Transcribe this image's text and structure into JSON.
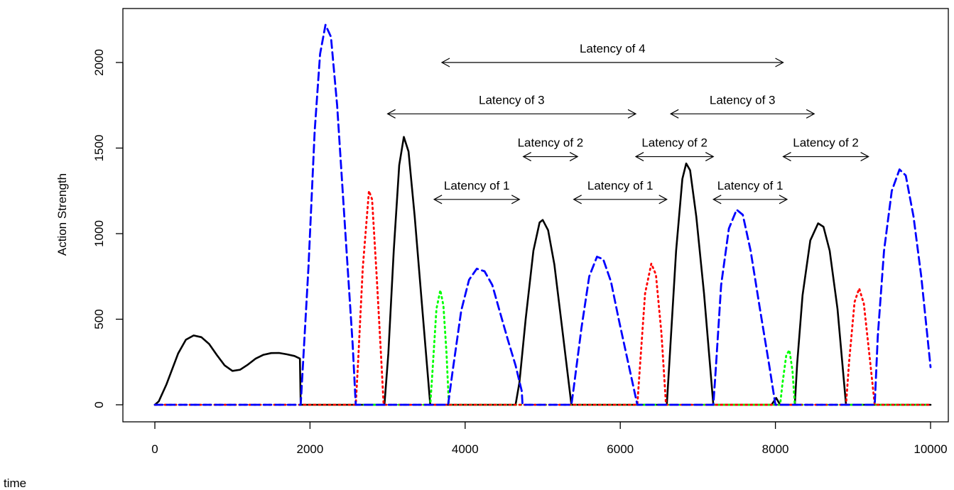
{
  "chart_data": {
    "type": "line",
    "title": "",
    "xlabel": "time",
    "ylabel": "Action Strength",
    "xlim": [
      0,
      10000
    ],
    "ylim": [
      0,
      2250
    ],
    "x_ticks": [
      "0",
      "2000",
      "4000",
      "6000",
      "8000",
      "10000"
    ],
    "y_ticks": [
      "0",
      "500",
      "1000",
      "1500",
      "2000"
    ],
    "grid": false,
    "legend": "none",
    "series": [
      {
        "color": "#000000",
        "style": "solid",
        "points": [
          [
            0,
            0
          ],
          [
            50,
            20
          ],
          [
            150,
            120
          ],
          [
            300,
            300
          ],
          [
            400,
            380
          ],
          [
            500,
            405
          ],
          [
            600,
            395
          ],
          [
            700,
            355
          ],
          [
            800,
            290
          ],
          [
            900,
            230
          ],
          [
            1000,
            198
          ],
          [
            1100,
            205
          ],
          [
            1200,
            235
          ],
          [
            1300,
            270
          ],
          [
            1400,
            292
          ],
          [
            1500,
            302
          ],
          [
            1600,
            303
          ],
          [
            1700,
            295
          ],
          [
            1800,
            285
          ],
          [
            1870,
            270
          ],
          [
            1880,
            0
          ],
          [
            2960,
            0
          ],
          [
            3010,
            300
          ],
          [
            3080,
            900
          ],
          [
            3150,
            1400
          ],
          [
            3210,
            1565
          ],
          [
            3270,
            1480
          ],
          [
            3350,
            1100
          ],
          [
            3450,
            550
          ],
          [
            3550,
            0
          ],
          [
            4650,
            0
          ],
          [
            4700,
            130
          ],
          [
            4780,
            500
          ],
          [
            4880,
            900
          ],
          [
            4960,
            1065
          ],
          [
            5000,
            1080
          ],
          [
            5070,
            1020
          ],
          [
            5150,
            820
          ],
          [
            5250,
            450
          ],
          [
            5370,
            0
          ],
          [
            6600,
            0
          ],
          [
            6640,
            300
          ],
          [
            6720,
            900
          ],
          [
            6800,
            1320
          ],
          [
            6850,
            1410
          ],
          [
            6900,
            1370
          ],
          [
            6980,
            1100
          ],
          [
            7080,
            650
          ],
          [
            7200,
            0
          ],
          [
            7950,
            0
          ],
          [
            8010,
            40
          ],
          [
            8060,
            0
          ],
          [
            8250,
            0
          ],
          [
            8280,
            240
          ],
          [
            8350,
            640
          ],
          [
            8450,
            960
          ],
          [
            8550,
            1060
          ],
          [
            8620,
            1040
          ],
          [
            8700,
            900
          ],
          [
            8800,
            560
          ],
          [
            8910,
            0
          ],
          [
            10000,
            0
          ]
        ]
      },
      {
        "color": "#0000ff",
        "style": "dashed",
        "points": [
          [
            0,
            0
          ],
          [
            1880,
            0
          ],
          [
            1890,
            80
          ],
          [
            1980,
            800
          ],
          [
            2060,
            1600
          ],
          [
            2130,
            2050
          ],
          [
            2200,
            2220
          ],
          [
            2270,
            2150
          ],
          [
            2350,
            1750
          ],
          [
            2450,
            1050
          ],
          [
            2550,
            350
          ],
          [
            2590,
            0
          ],
          [
            3780,
            0
          ],
          [
            3840,
            200
          ],
          [
            3950,
            550
          ],
          [
            4050,
            730
          ],
          [
            4150,
            795
          ],
          [
            4250,
            780
          ],
          [
            4350,
            700
          ],
          [
            4450,
            540
          ],
          [
            4550,
            380
          ],
          [
            4650,
            230
          ],
          [
            4730,
            80
          ],
          [
            4740,
            0
          ],
          [
            5370,
            0
          ],
          [
            5400,
            100
          ],
          [
            5500,
            450
          ],
          [
            5600,
            750
          ],
          [
            5700,
            865
          ],
          [
            5780,
            850
          ],
          [
            5880,
            720
          ],
          [
            5980,
            500
          ],
          [
            6100,
            250
          ],
          [
            6220,
            0
          ],
          [
            7200,
            0
          ],
          [
            7230,
            200
          ],
          [
            7300,
            700
          ],
          [
            7400,
            1030
          ],
          [
            7500,
            1140
          ],
          [
            7580,
            1110
          ],
          [
            7680,
            900
          ],
          [
            7800,
            560
          ],
          [
            7920,
            230
          ],
          [
            8000,
            0
          ],
          [
            9280,
            0
          ],
          [
            9320,
            400
          ],
          [
            9400,
            900
          ],
          [
            9500,
            1250
          ],
          [
            9600,
            1375
          ],
          [
            9680,
            1340
          ],
          [
            9780,
            1100
          ],
          [
            9880,
            750
          ],
          [
            10000,
            220
          ]
        ]
      },
      {
        "color": "#ff0000",
        "style": "dotted",
        "points": [
          [
            0,
            0
          ],
          [
            2590,
            0
          ],
          [
            2620,
            250
          ],
          [
            2680,
            800
          ],
          [
            2760,
            1250
          ],
          [
            2800,
            1200
          ],
          [
            2860,
            750
          ],
          [
            2920,
            250
          ],
          [
            2950,
            0
          ],
          [
            6220,
            0
          ],
          [
            6250,
            200
          ],
          [
            6320,
            650
          ],
          [
            6400,
            825
          ],
          [
            6460,
            760
          ],
          [
            6530,
            420
          ],
          [
            6590,
            0
          ],
          [
            8910,
            0
          ],
          [
            8950,
            250
          ],
          [
            9020,
            600
          ],
          [
            9080,
            680
          ],
          [
            9140,
            590
          ],
          [
            9210,
            300
          ],
          [
            9280,
            0
          ],
          [
            10000,
            0
          ]
        ]
      },
      {
        "color": "#00ff00",
        "style": "dotted",
        "points": [
          [
            0,
            0
          ],
          [
            3550,
            0
          ],
          [
            3580,
            200
          ],
          [
            3630,
            560
          ],
          [
            3680,
            670
          ],
          [
            3720,
            580
          ],
          [
            3760,
            300
          ],
          [
            3790,
            0
          ],
          [
            8060,
            0
          ],
          [
            8090,
            120
          ],
          [
            8140,
            290
          ],
          [
            8180,
            320
          ],
          [
            8220,
            200
          ],
          [
            8250,
            0
          ],
          [
            10000,
            0
          ]
        ]
      }
    ],
    "annotations": [
      {
        "text": "Latency of 4",
        "x_start": 3700,
        "x_end": 8100,
        "y": 2000
      },
      {
        "text": "Latency of 3",
        "x_start": 3000,
        "x_end": 6200,
        "y": 1700
      },
      {
        "text": "Latency of 3",
        "x_start": 6650,
        "x_end": 8500,
        "y": 1700
      },
      {
        "text": "Latency of 2",
        "x_start": 4750,
        "x_end": 5450,
        "y": 1450
      },
      {
        "text": "Latency of 2",
        "x_start": 6200,
        "x_end": 7200,
        "y": 1450
      },
      {
        "text": "Latency of 2",
        "x_start": 8100,
        "x_end": 9200,
        "y": 1450
      },
      {
        "text": "Latency of 1",
        "x_start": 3600,
        "x_end": 4700,
        "y": 1200
      },
      {
        "text": "Latency of 1",
        "x_start": 5400,
        "x_end": 6600,
        "y": 1200
      },
      {
        "text": "Latency of 1",
        "x_start": 7200,
        "x_end": 8150,
        "y": 1200
      }
    ]
  }
}
